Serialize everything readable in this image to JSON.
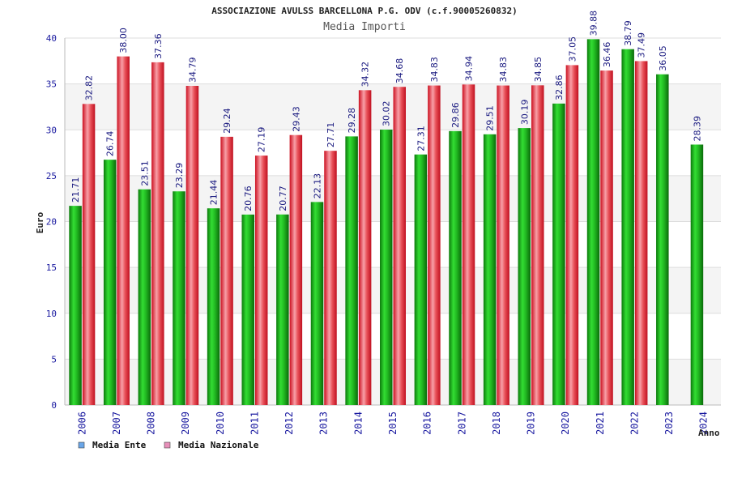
{
  "chart_data": {
    "type": "bar",
    "title": "ASSOCIAZIONE AVULSS BARCELLONA P.G. ODV (c.f.90005260832)",
    "subtitle": "Media Importi",
    "xlabel": "Anno",
    "ylabel": "Euro",
    "ylim": [
      0,
      40
    ],
    "yticks": [
      0,
      5,
      10,
      15,
      20,
      25,
      30,
      35,
      40
    ],
    "grid": true,
    "legend_position": "bottom-left",
    "categories": [
      "2006",
      "2007",
      "2008",
      "2009",
      "2010",
      "2011",
      "2012",
      "2013",
      "2014",
      "2015",
      "2016",
      "2017",
      "2018",
      "2019",
      "2020",
      "2021",
      "2022",
      "2023",
      "2024"
    ],
    "series": [
      {
        "name": "Media Ente",
        "color": "#22bb22",
        "legend_color": "#6aa6e8",
        "values": [
          21.71,
          26.74,
          23.51,
          23.29,
          21.44,
          20.76,
          20.77,
          22.13,
          29.28,
          30.02,
          27.31,
          29.86,
          29.51,
          30.19,
          32.86,
          39.88,
          38.79,
          36.05,
          28.39
        ],
        "labels": [
          "21.71",
          "26.74",
          "23.51",
          "23.29",
          "21.44",
          "20.76",
          "20.77",
          "22.13",
          "29.28",
          "30.02",
          "27.31",
          "29.86",
          "29.51",
          "30.19",
          "32.86",
          "39.88",
          "38.79",
          "36.05",
          "28.39"
        ]
      },
      {
        "name": "Media Nazionale",
        "color": "#e8323c",
        "legend_color": "#e78fb9",
        "values": [
          32.82,
          38.0,
          37.36,
          34.79,
          29.24,
          27.19,
          29.43,
          27.71,
          34.32,
          34.68,
          34.83,
          34.94,
          34.83,
          34.85,
          37.05,
          36.46,
          37.49,
          null,
          null
        ],
        "labels": [
          "32.82",
          "38.00",
          "37.36",
          "34.79",
          "29.24",
          "27.19",
          "29.43",
          "27.71",
          "34.32",
          "34.68",
          "34.83",
          "34.94",
          "34.83",
          "34.85",
          "37.05",
          "36.46",
          "37.49",
          "",
          ""
        ]
      }
    ]
  }
}
